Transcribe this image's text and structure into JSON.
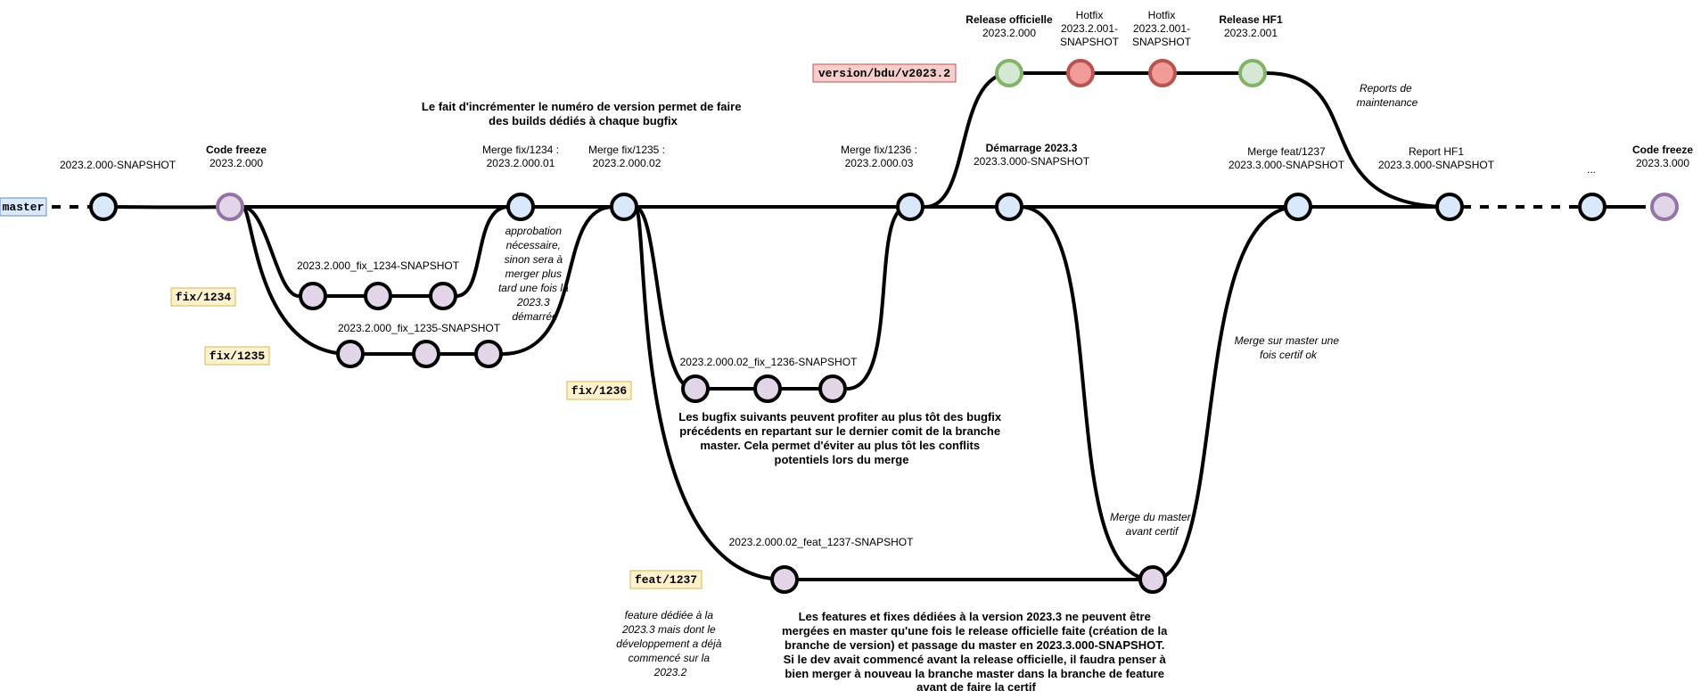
{
  "branches": {
    "master": "master",
    "fix1234": "fix/1234",
    "fix1235": "fix/1235",
    "fix1236": "fix/1236",
    "feat1237": "feat/1237",
    "version": "version/bdu/v2023.2"
  },
  "colors": {
    "master_fill": "#dae8fc",
    "master_tag_stroke": "#6c8ebf",
    "branch_fill": "#e1d5e7",
    "branch_stroke": "#9673a6",
    "fix_tag_fill": "#fff2cc",
    "fix_tag_stroke": "#d6b656",
    "version_tag_fill": "#f8cecc",
    "version_tag_stroke": "#b85450",
    "release_fill": "#d5e8d4",
    "release_stroke": "#82b366",
    "hotfix_fill": "#f19c99",
    "hotfix_stroke": "#b85450"
  },
  "labels": {
    "snapshot_start": "2023.2.000-SNAPSHOT",
    "code_freeze_1_title": "Code freeze",
    "code_freeze_1_version": "2023.2.000",
    "merge_1234_title": "Merge fix/1234 :",
    "merge_1234_version": "2023.2.000.01",
    "merge_1235_title": "Merge fix/1235 :",
    "merge_1235_version": "2023.2.000.02",
    "merge_1236_title": "Merge fix/1236 :",
    "merge_1236_version": "2023.2.000.03",
    "start_233_title": "Démarrage 2023.3",
    "start_233_version": "2023.3.000-SNAPSHOT",
    "merge_1237_title": "Merge feat/1237",
    "merge_1237_version": "2023.3.000-SNAPSHOT",
    "report_hf1_title": "Report HF1",
    "report_hf1_version": "2023.3.000-SNAPSHOT",
    "ellipsis": "...",
    "code_freeze_2_title": "Code freeze",
    "code_freeze_2_version": "2023.3.000",
    "release_officielle_title": "Release officielle",
    "release_officielle_version": "2023.2.000",
    "hotfix_1_title": "Hotfix",
    "hotfix_1_line1": "2023.2.001-",
    "hotfix_1_line2": "SNAPSHOT",
    "hotfix_2_title": "Hotfix",
    "hotfix_2_line1": "2023.2.001-",
    "hotfix_2_line2": "SNAPSHOT",
    "release_hf1_title": "Release HF1",
    "release_hf1_version": "2023.2.001",
    "fix1234_snapshot": "2023.2.000_fix_1234-SNAPSHOT",
    "fix1235_snapshot": "2023.2.000_fix_1235-SNAPSHOT",
    "fix1236_snapshot": "2023.2.000.02_fix_1236-SNAPSHOT",
    "feat1237_snapshot": "2023.2.000.02_feat_1237-SNAPSHOT"
  },
  "notes": {
    "increment": [
      "Le fait d'incrémenter le numéro de version permet de faire",
      "des builds dédiés à chaque bugfix"
    ],
    "approbation": [
      "approbation",
      "nécessaire,",
      "sinon sera à",
      "merger plus",
      "tard une fois la",
      "2023.3",
      "démarrée"
    ],
    "bugfix_suivants": [
      "Les bugfix suivants peuvent profiter au plus tôt des bugfix",
      "précédents en repartant sur le dernier comit de la branche",
      "master. Cela permet d'éviter au plus tôt les conflits",
      "potentiels lors du merge"
    ],
    "reports": [
      "Reports de",
      "maintenance"
    ],
    "merge_master_certif": [
      "Merge sur master une",
      "fois certif ok"
    ],
    "merge_du_master": [
      "Merge du master",
      "avant certif"
    ],
    "feature_dediee": [
      "feature dédiée à la",
      "2023.3 mais dont le",
      "développement a déjà",
      "commencé sur la",
      "2023.2"
    ],
    "features_fixes": [
      "Les features  et fixes dédiées à la version 2023.3 ne peuvent être",
      "mergées en master qu'une fois le release officielle faite (création de la",
      "branche de version) et passage du master en 2023.3.000-SNAPSHOT.",
      "Si le dev avait commencé avant la release officielle, il faudra penser à",
      "bien merger à nouveau la branche master dans la branche de feature",
      "avant de faire la certif"
    ]
  }
}
